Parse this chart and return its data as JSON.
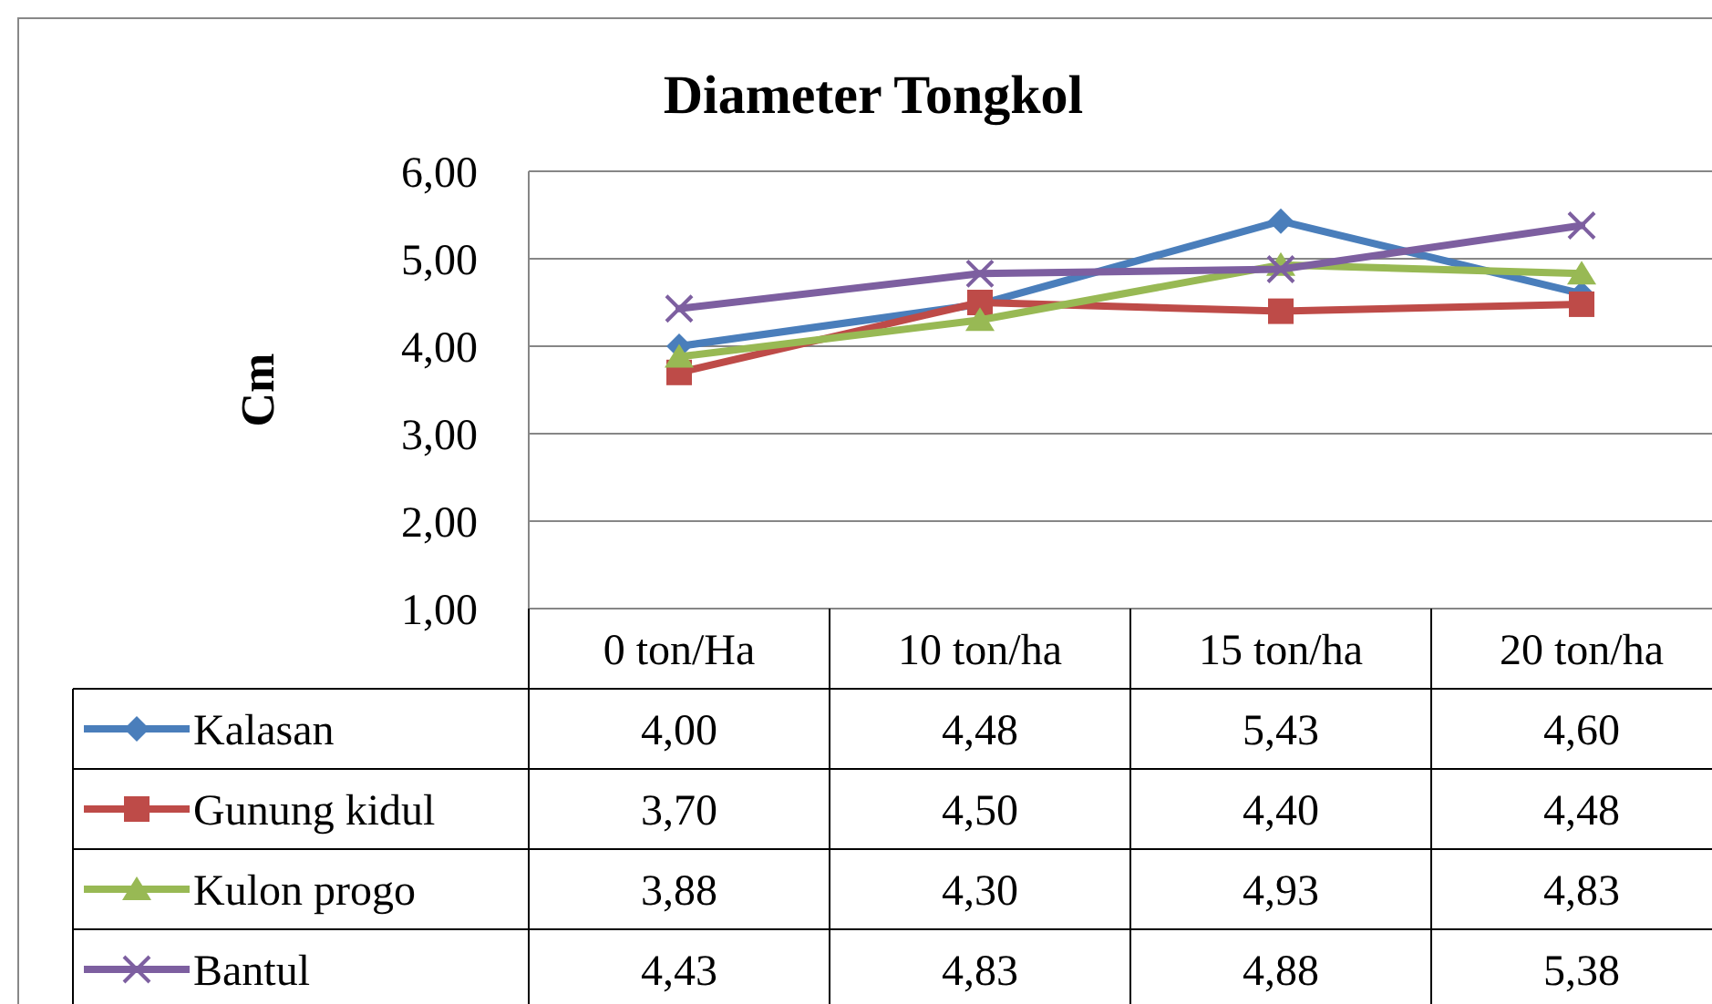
{
  "chart_data": {
    "type": "line",
    "title": "Diameter Tongkol",
    "ylabel": "Cm",
    "categories": [
      "0 ton/Ha",
      "10 ton/ha",
      "15 ton/ha",
      "20 ton/ha"
    ],
    "ylim": [
      1,
      6
    ],
    "yticks": [
      {
        "value": 1,
        "label": "1,00"
      },
      {
        "value": 2,
        "label": "2,00"
      },
      {
        "value": 3,
        "label": "3,00"
      },
      {
        "value": 4,
        "label": "4,00"
      },
      {
        "value": 5,
        "label": "5,00"
      },
      {
        "value": 6,
        "label": "6,00"
      }
    ],
    "grid": "y",
    "legend": "bottom",
    "line_style": "solid",
    "series": [
      {
        "name": "Kalasan",
        "color": "#4a7ebb",
        "marker": "diamond",
        "values": [
          4.0,
          4.48,
          5.43,
          4.6
        ],
        "value_labels": [
          "4,00",
          "4,48",
          "5,43",
          "4,60"
        ]
      },
      {
        "name": "Gunung kidul",
        "color": "#be4b48",
        "marker": "square",
        "values": [
          3.7,
          4.5,
          4.4,
          4.48
        ],
        "value_labels": [
          "3,70",
          "4,50",
          "4,40",
          "4,48"
        ]
      },
      {
        "name": "Kulon progo",
        "color": "#98b954",
        "marker": "triangle",
        "values": [
          3.88,
          4.3,
          4.93,
          4.83
        ],
        "value_labels": [
          "3,88",
          "4,30",
          "4,93",
          "4,83"
        ]
      },
      {
        "name": "Bantul",
        "color": "#7d5fa0",
        "marker": "cross",
        "values": [
          4.43,
          4.83,
          4.88,
          5.38
        ],
        "value_labels": [
          "4,43",
          "4,83",
          "4,88",
          "5,38"
        ]
      }
    ]
  }
}
